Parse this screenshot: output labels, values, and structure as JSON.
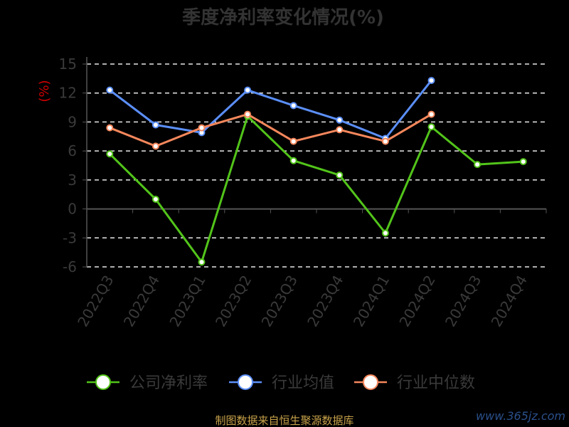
{
  "chart_data": {
    "type": "line",
    "title": "季度净利率变化情况(%)",
    "ylabel": "(%)",
    "xlabel": "",
    "categories": [
      "2022Q3",
      "2022Q4",
      "2023Q1",
      "2023Q2",
      "2023Q3",
      "2023Q4",
      "2024Q1",
      "2024Q2",
      "2024Q3",
      "2024Q4"
    ],
    "y_ticks": [
      15,
      12,
      9,
      6,
      3,
      0,
      -3,
      -6
    ],
    "ylim": [
      -6,
      15
    ],
    "grid": "horizontal dashed",
    "legend_position": "bottom",
    "series": [
      {
        "name": "公司净利率",
        "color": "#52c41a",
        "values": [
          5.7,
          1.0,
          -5.5,
          9.6,
          5.0,
          3.5,
          -2.5,
          8.5,
          4.6,
          4.9
        ]
      },
      {
        "name": "行业均值",
        "color": "#5b8ff9",
        "values": [
          12.3,
          8.7,
          7.9,
          12.3,
          10.7,
          9.2,
          7.3,
          13.3,
          null,
          null
        ]
      },
      {
        "name": "行业中位数",
        "color": "#f5875c",
        "values": [
          8.4,
          6.5,
          8.4,
          9.8,
          7.0,
          8.2,
          7.0,
          9.8,
          null,
          null
        ]
      }
    ]
  },
  "source": "制图数据来自恒生聚源数据库",
  "watermark": "www.365jz.com"
}
